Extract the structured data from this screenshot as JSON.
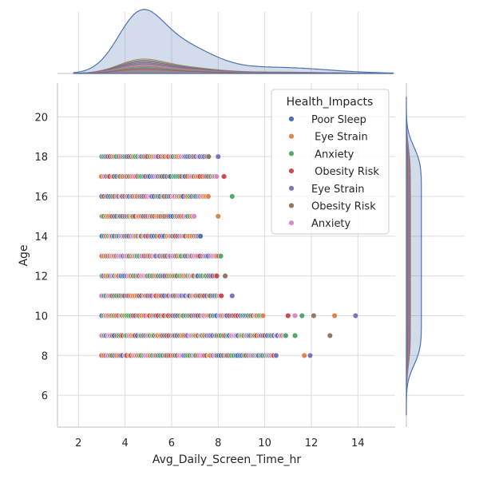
{
  "chart_data": {
    "type": "scatter",
    "subtype": "jointplot",
    "xlabel": "Avg_Daily_Screen_Time_hr",
    "ylabel": "Age",
    "xlim": [
      1.1,
      15.6
    ],
    "ylim": [
      4.4,
      21.7
    ],
    "x_ticks": [
      "2",
      "4",
      "6",
      "8",
      "10",
      "12",
      "14"
    ],
    "y_ticks": [
      "6",
      "8",
      "10",
      "12",
      "14",
      "16",
      "18",
      "20"
    ],
    "grid": true,
    "legend": {
      "title": "Health_Impacts",
      "placement": "top-right",
      "entries": [
        {
          "label": "Poor Sleep",
          "color": "#4c72b0"
        },
        {
          "label": " Eye Strain",
          "color": "#dd8452"
        },
        {
          "label": " Anxiety",
          "color": "#55a868"
        },
        {
          "label": " Obesity Risk",
          "color": "#c44e52"
        },
        {
          "label": "Eye Strain",
          "color": "#8172b3"
        },
        {
          "label": "Obesity Risk",
          "color": "#937860"
        },
        {
          "label": "Anxiety",
          "color": "#da8bc3"
        }
      ]
    },
    "rows": [
      {
        "age": 8,
        "x_min": 3.0,
        "x_max": 10.5,
        "extra_x": [
          11.7,
          11.95
        ]
      },
      {
        "age": 9,
        "x_min": 3.0,
        "x_max": 11.0,
        "extra_x": [
          11.3,
          12.8
        ]
      },
      {
        "age": 10,
        "x_min": 3.0,
        "x_max": 10.0,
        "extra_x": [
          11.0,
          11.3,
          11.6,
          12.1,
          13.0,
          13.9
        ]
      },
      {
        "age": 11,
        "x_min": 3.0,
        "x_max": 8.2,
        "extra_x": [
          8.6
        ]
      },
      {
        "age": 12,
        "x_min": 3.0,
        "x_max": 8.0,
        "extra_x": [
          8.3
        ]
      },
      {
        "age": 13,
        "x_min": 3.0,
        "x_max": 8.2,
        "extra_x": []
      },
      {
        "age": 14,
        "x_min": 3.0,
        "x_max": 7.3,
        "extra_x": []
      },
      {
        "age": 15,
        "x_min": 3.0,
        "x_max": 7.0,
        "extra_x": [
          8.0
        ]
      },
      {
        "age": 16,
        "x_min": 3.0,
        "x_max": 7.6,
        "extra_x": [
          8.6
        ]
      },
      {
        "age": 17,
        "x_min": 3.0,
        "x_max": 8.0,
        "extra_x": [
          8.25
        ]
      },
      {
        "age": 18,
        "x_min": 3.0,
        "x_max": 7.6,
        "extra_x": [
          8.0
        ]
      }
    ],
    "marginal_x": {
      "type": "kde",
      "mode": "peak",
      "peak_x": 4.6,
      "range": [
        1.8,
        15.5
      ]
    },
    "marginal_y": {
      "type": "kde",
      "mode": "peak",
      "range": [
        5.0,
        21.0
      ]
    }
  }
}
